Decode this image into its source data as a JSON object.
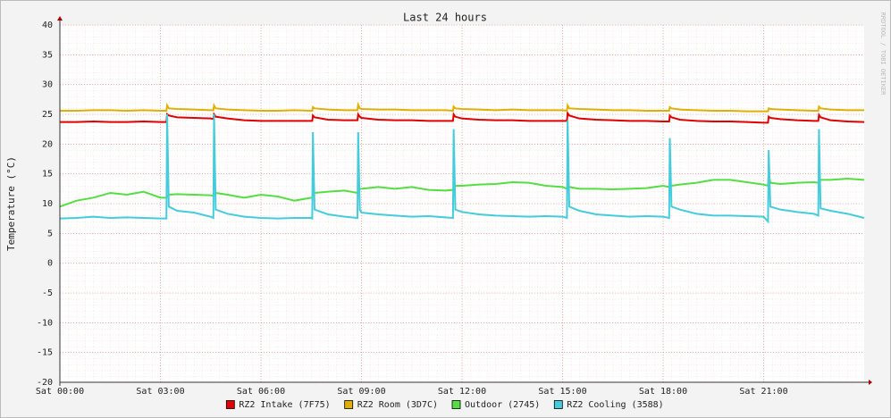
{
  "chart_data": {
    "type": "line",
    "title": "Last 24 hours",
    "y_label": "Temperature (°C)",
    "watermark": "RRDTOOL / TOBI OETIKER",
    "x": [
      0,
      0.5,
      1,
      1.5,
      2,
      2.5,
      3,
      3.18,
      3.2,
      3.25,
      3.5,
      4,
      4.5,
      4.58,
      4.6,
      4.65,
      5,
      5.5,
      6,
      6.5,
      7,
      7.5,
      7.53,
      7.55,
      7.6,
      8,
      8.5,
      8.88,
      8.9,
      8.95,
      9,
      9.5,
      10,
      10.5,
      11,
      11.5,
      11.73,
      11.75,
      11.8,
      12,
      12.5,
      13,
      13.5,
      14,
      14.5,
      15,
      15.13,
      15.15,
      15.2,
      15.5,
      16,
      16.5,
      17,
      17.5,
      18,
      18.18,
      18.2,
      18.25,
      18.5,
      19,
      19.5,
      20,
      20.5,
      21,
      21.13,
      21.15,
      21.2,
      21.5,
      22,
      22.5,
      22.63,
      22.65,
      22.7,
      23,
      23.5,
      24
    ],
    "series": [
      {
        "name": "RZ2 Intake (7F75)",
        "color": "#e00000",
        "values": [
          23.7,
          23.7,
          23.8,
          23.7,
          23.7,
          23.8,
          23.7,
          23.7,
          25.0,
          24.8,
          24.5,
          24.4,
          24.3,
          24.2,
          25.0,
          24.6,
          24.3,
          24.0,
          23.9,
          23.9,
          23.9,
          23.9,
          23.9,
          24.8,
          24.5,
          24.1,
          24.0,
          24.0,
          25.0,
          24.6,
          24.4,
          24.1,
          24.0,
          24.0,
          23.9,
          23.9,
          23.9,
          25.0,
          24.6,
          24.3,
          24.1,
          24.0,
          24.0,
          23.9,
          23.9,
          23.9,
          23.9,
          25.2,
          24.8,
          24.3,
          24.1,
          24.0,
          23.9,
          23.9,
          23.8,
          23.8,
          24.8,
          24.5,
          24.1,
          23.9,
          23.8,
          23.8,
          23.7,
          23.6,
          23.6,
          24.6,
          24.4,
          24.2,
          24.0,
          23.9,
          23.9,
          24.9,
          24.5,
          24.0,
          23.8,
          23.7
        ]
      },
      {
        "name": "RZ2 Room (3D7C)",
        "color": "#e0b000",
        "values": [
          25.6,
          25.6,
          25.7,
          25.7,
          25.6,
          25.7,
          25.6,
          25.6,
          26.5,
          26.0,
          25.9,
          25.8,
          25.7,
          25.7,
          26.5,
          26.0,
          25.8,
          25.7,
          25.6,
          25.6,
          25.7,
          25.6,
          25.6,
          26.2,
          26.0,
          25.8,
          25.7,
          25.7,
          26.6,
          26.0,
          25.9,
          25.8,
          25.8,
          25.7,
          25.7,
          25.7,
          25.6,
          26.3,
          26.0,
          25.9,
          25.8,
          25.7,
          25.8,
          25.7,
          25.7,
          25.7,
          25.6,
          26.5,
          26.0,
          25.9,
          25.8,
          25.7,
          25.7,
          25.6,
          25.6,
          25.6,
          26.2,
          26.0,
          25.8,
          25.7,
          25.6,
          25.6,
          25.5,
          25.5,
          25.5,
          26.0,
          25.9,
          25.8,
          25.7,
          25.6,
          25.6,
          26.3,
          26.0,
          25.8,
          25.7,
          25.7
        ]
      },
      {
        "name": "Outdoor (2745)",
        "color": "#55dd44",
        "values": [
          9.5,
          10.5,
          11.0,
          11.8,
          11.5,
          12.0,
          11.0,
          11.0,
          11.2,
          11.5,
          11.6,
          11.5,
          11.4,
          11.3,
          11.5,
          11.8,
          11.5,
          11.0,
          11.5,
          11.2,
          10.5,
          11.0,
          11.0,
          11.5,
          11.8,
          12.0,
          12.2,
          11.8,
          12.0,
          12.5,
          12.5,
          12.8,
          12.5,
          12.8,
          12.3,
          12.2,
          12.3,
          12.8,
          13.0,
          13.0,
          13.2,
          13.3,
          13.6,
          13.5,
          13.0,
          12.8,
          12.5,
          12.8,
          12.8,
          12.5,
          12.5,
          12.4,
          12.5,
          12.6,
          13.0,
          12.8,
          13.0,
          13.0,
          13.2,
          13.5,
          14.0,
          14.0,
          13.6,
          13.2,
          13.0,
          15.0,
          13.5,
          13.3,
          13.5,
          13.6,
          13.5,
          14.0,
          14.0,
          14.0,
          14.2,
          14.0
        ]
      },
      {
        "name": "RZ2 Cooling (3588)",
        "color": "#44ccdd",
        "values": [
          7.5,
          7.6,
          7.8,
          7.6,
          7.7,
          7.6,
          7.5,
          7.5,
          25.0,
          9.5,
          8.8,
          8.5,
          7.8,
          7.6,
          25.0,
          9.0,
          8.3,
          7.8,
          7.6,
          7.5,
          7.6,
          7.6,
          7.5,
          22.0,
          9.0,
          8.2,
          7.8,
          7.6,
          22.0,
          9.0,
          8.5,
          8.2,
          8.0,
          7.8,
          7.9,
          7.7,
          7.6,
          22.5,
          9.0,
          8.6,
          8.2,
          8.0,
          7.9,
          7.8,
          7.9,
          7.8,
          7.6,
          24.0,
          9.5,
          8.8,
          8.2,
          8.0,
          7.8,
          7.9,
          7.8,
          7.6,
          21.0,
          9.5,
          9.0,
          8.3,
          8.0,
          8.0,
          7.9,
          7.8,
          7.0,
          19.0,
          9.5,
          9.0,
          8.6,
          8.3,
          8.0,
          22.5,
          9.2,
          8.8,
          8.3,
          7.6
        ]
      }
    ],
    "xlim": [
      0,
      24
    ],
    "xticks": [
      {
        "value": 0,
        "label": "Sat 00:00"
      },
      {
        "value": 3,
        "label": "Sat 03:00"
      },
      {
        "value": 6,
        "label": "Sat 06:00"
      },
      {
        "value": 9,
        "label": "Sat 09:00"
      },
      {
        "value": 12,
        "label": "Sat 12:00"
      },
      {
        "value": 15,
        "label": "Sat 15:00"
      },
      {
        "value": 18,
        "label": "Sat 18:00"
      },
      {
        "value": 21,
        "label": "Sat 21:00"
      }
    ],
    "ylim": [
      -20,
      40
    ],
    "yticks": [
      -20,
      -15,
      -10,
      -5,
      0,
      5,
      10,
      15,
      20,
      25,
      30,
      35,
      40
    ],
    "grid": true,
    "legend": "bottom"
  }
}
